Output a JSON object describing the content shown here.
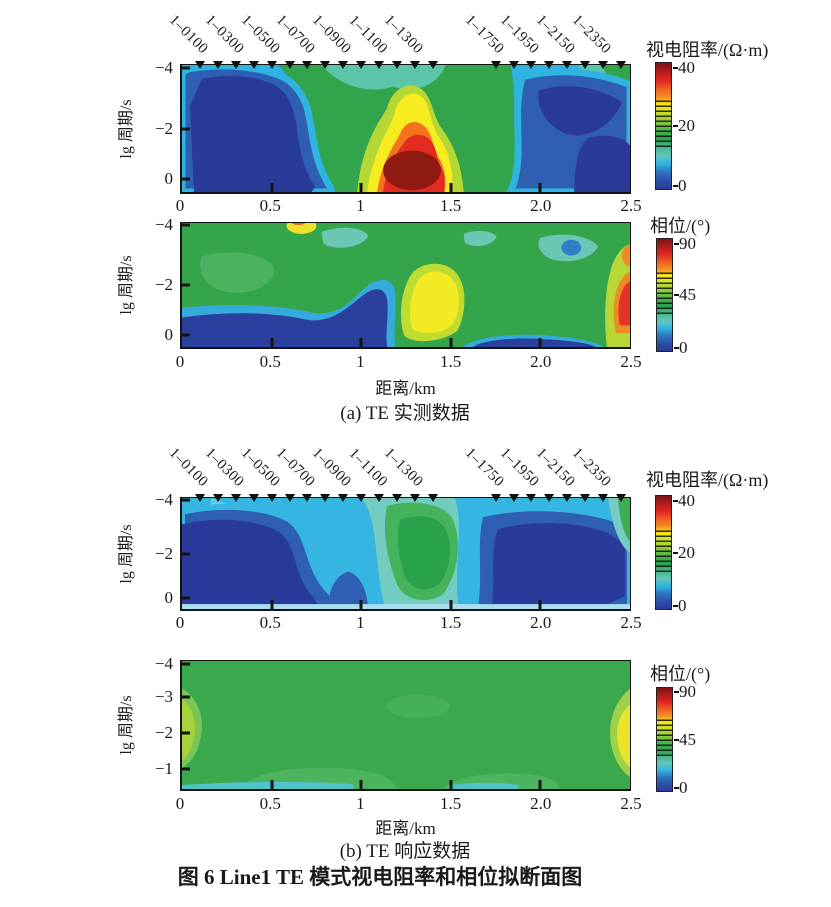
{
  "figure": {
    "panel_a_caption": "(a) TE 实测数据",
    "panel_b_caption": "(b) TE 响应数据",
    "title": "图 6  Line1 TE 模式视电阻率和相位拟断面图"
  },
  "axes": {
    "xlabel": "距离/km",
    "ylabel": "lg 周期/s",
    "x_max": 2.5,
    "x_ticks": [
      {
        "label": "0",
        "km": 0
      },
      {
        "label": "0.5",
        "km": 0.5
      },
      {
        "label": "1",
        "km": 1
      },
      {
        "label": "1.5",
        "km": 1.5
      },
      {
        "label": "2.0",
        "km": 2
      },
      {
        "label": "2.5",
        "km": 2.5
      }
    ],
    "y_tick_sets": {
      "three": [
        {
          "label": "−4",
          "f": 0.02
        },
        {
          "label": "−2",
          "f": 0.5
        },
        {
          "label": "0",
          "f": 0.9
        }
      ],
      "four": [
        {
          "label": "−4",
          "f": 0.02
        },
        {
          "label": "−3",
          "f": 0.285
        },
        {
          "label": "−2",
          "f": 0.56
        },
        {
          "label": "−1",
          "f": 0.845
        }
      ]
    }
  },
  "stations": {
    "marker_km": [
      0.1,
      0.2,
      0.3,
      0.4,
      0.5,
      0.6,
      0.7,
      0.8,
      0.9,
      1.0,
      1.1,
      1.2,
      1.3,
      1.4,
      1.75,
      1.85,
      1.95,
      2.05,
      2.15,
      2.25,
      2.35,
      2.45
    ],
    "labels": [
      {
        "label": "1–0100",
        "km": 0.1
      },
      {
        "label": "1–0300",
        "km": 0.3
      },
      {
        "label": "1–0500",
        "km": 0.5
      },
      {
        "label": "1–0700",
        "km": 0.7
      },
      {
        "label": "1–0900",
        "km": 0.9
      },
      {
        "label": "1–1100",
        "km": 1.1
      },
      {
        "label": "1–1300",
        "km": 1.3
      },
      {
        "label": "1–1750",
        "km": 1.75
      },
      {
        "label": "1–1950",
        "km": 1.95
      },
      {
        "label": "1–2150",
        "km": 2.15
      },
      {
        "label": "1–2350",
        "km": 2.35
      }
    ]
  },
  "colorbars": {
    "resistivity": {
      "label": "视电阻率/(Ω·m)",
      "ticks": [
        {
          "label": "40",
          "f": 0.05
        },
        {
          "label": "20",
          "f": 0.5
        },
        {
          "label": "0",
          "f": 0.965
        }
      ]
    },
    "phase": {
      "label": "相位/(°)",
      "ticks": [
        {
          "label": "90",
          "f": 0.05
        },
        {
          "label": "45",
          "f": 0.5
        },
        {
          "label": "0",
          "f": 0.965
        }
      ]
    }
  },
  "palette": {
    "colorbar_top_to_bottom": [
      "#7a1315",
      "#b01b1b",
      "#e02420",
      "#ef5a23",
      "#f58c20",
      "#f6ea1c",
      "#c3dc2a",
      "#8cc83b",
      "#45b34f",
      "#2aa34c",
      "#45b98a",
      "#63c6bd",
      "#30b2e0",
      "#2d74bb",
      "#2c4fa8",
      "#2b3a97"
    ]
  },
  "chart_data": [
    {
      "type": "heatmap",
      "id": "a_apparent_resistivity_measured",
      "group_caption": "(a) TE 实测数据",
      "xlabel": "距离/km",
      "ylabel": "lg 周期/s",
      "xlim": [
        0,
        2.5
      ],
      "ylim_top_to_bottom": [
        -4,
        0.5
      ],
      "x_tick_values": [
        0,
        0.5,
        1,
        1.5,
        2.0,
        2.5
      ],
      "y_tick_values": [
        -4,
        -2,
        0
      ],
      "grid": false,
      "colorbar": {
        "label": "视电阻率/(Ω·m)",
        "min": 0,
        "max": 40,
        "tick_values": [
          40,
          20,
          0
        ],
        "position": "right"
      },
      "features": [
        {
          "region": "central high-resistivity core (dark red)",
          "x_km": [
            1.0,
            1.45
          ],
          "lg_period": [
            -1.3,
            0.5
          ],
          "value_ohm_m": 40
        },
        {
          "region": "red-orange halo",
          "x_km": [
            0.9,
            1.55
          ],
          "lg_period": [
            -2.3,
            0.5
          ],
          "value_ohm_m": 30
        },
        {
          "region": "yellow halo rising shallow",
          "x_km": [
            0.95,
            1.4
          ],
          "lg_period": [
            -3.2,
            0.5
          ],
          "value_ohm_m": 25
        },
        {
          "region": "green medium zone around anomaly",
          "x_km": [
            0.55,
            1.9
          ],
          "lg_period": [
            -4,
            0.5
          ],
          "value_ohm_m": 18
        },
        {
          "region": "left conductive zone (dark blue)",
          "x_km": [
            0.05,
            0.75
          ],
          "lg_period": [
            -3.7,
            0.5
          ],
          "value_ohm_m": 4
        },
        {
          "region": "right conductive zone (dark blue)",
          "x_km": [
            1.85,
            2.45
          ],
          "lg_period": [
            -3.5,
            0.5
          ],
          "value_ohm_m": 4
        },
        {
          "region": "teal-green shallow strip top-right corner",
          "x_km": [
            2.2,
            2.5
          ],
          "lg_period": [
            -4,
            -3.2
          ],
          "value_ohm_m": 15
        }
      ]
    },
    {
      "type": "heatmap",
      "id": "a_phase_measured",
      "group_caption": "(a) TE 实测数据",
      "xlabel": "距离/km",
      "ylabel": "lg 周期/s",
      "xlim": [
        0,
        2.5
      ],
      "ylim_top_to_bottom": [
        -4,
        0.5
      ],
      "x_tick_values": [
        0,
        0.5,
        1,
        1.5,
        2.0,
        2.5
      ],
      "y_tick_values": [
        -4,
        -2,
        0
      ],
      "grid": false,
      "colorbar": {
        "label": "相位/(°)",
        "min": 0,
        "max": 90,
        "tick_values": [
          90,
          45,
          0
        ],
        "position": "right"
      },
      "features": [
        {
          "region": "background",
          "phase_deg": 45
        },
        {
          "region": "low-phase band along bottom-left (dark blue)",
          "x_km": [
            0,
            1.2
          ],
          "lg_period": [
            -0.6,
            0.5
          ],
          "phase_deg": 10
        },
        {
          "region": "high-phase blob (yellow)",
          "x_km": [
            1.25,
            1.75
          ],
          "lg_period": [
            -2.6,
            -0.6
          ],
          "phase_deg": 60
        },
        {
          "region": "high-phase spot right edge (red)",
          "x_km": [
            2.42,
            2.5
          ],
          "lg_period": [
            -1.8,
            -0.4
          ],
          "phase_deg": 78
        },
        {
          "region": "low-phase strip bottom right",
          "x_km": [
            1.6,
            2.35
          ],
          "lg_period": [
            -0.3,
            0.5
          ],
          "phase_deg": 15
        },
        {
          "region": "small cool spot",
          "x_km": [
            2.05,
            2.2
          ],
          "lg_period": [
            -3.4,
            -2.9
          ],
          "phase_deg": 30
        },
        {
          "region": "small warm spot at top",
          "x_km": [
            0.6,
            0.78
          ],
          "lg_period": [
            -4,
            -3.8
          ],
          "phase_deg": 65
        }
      ]
    },
    {
      "type": "heatmap",
      "id": "b_apparent_resistivity_response",
      "group_caption": "(b) TE 响应数据",
      "xlabel": "距离/km",
      "ylabel": "lg 周期/s",
      "xlim": [
        0,
        2.5
      ],
      "ylim_top_to_bottom": [
        -4,
        0.5
      ],
      "x_tick_values": [
        0,
        0.5,
        1,
        1.5,
        2.0,
        2.5
      ],
      "y_tick_values": [
        -4,
        -2,
        0
      ],
      "grid": false,
      "colorbar": {
        "label": "视电阻率/(Ω·m)",
        "min": 0,
        "max": 40,
        "tick_values": [
          40,
          20,
          0
        ],
        "position": "right"
      },
      "features": [
        {
          "region": "background (cyan)",
          "value_ohm_m": 9
        },
        {
          "region": "central green moderate zone",
          "x_km": [
            1.1,
            1.65
          ],
          "lg_period": [
            -3.8,
            -0.3
          ],
          "value_ohm_m": 18
        },
        {
          "region": "left conductive zone (dark blue)",
          "x_km": [
            0,
            0.85
          ],
          "lg_period": [
            -3.6,
            0.5
          ],
          "value_ohm_m": 4
        },
        {
          "region": "right conductive zone (dark blue)",
          "x_km": [
            1.7,
            2.45
          ],
          "lg_period": [
            -3.5,
            0.5
          ],
          "value_ohm_m": 4
        },
        {
          "region": "green corner top-right edge",
          "x_km": [
            2.42,
            2.5
          ],
          "lg_period": [
            -4,
            -2.2
          ],
          "value_ohm_m": 16
        }
      ]
    },
    {
      "type": "heatmap",
      "id": "b_phase_response",
      "group_caption": "(b) TE 响应数据",
      "xlabel": "距离/km",
      "ylabel": "lg 周期/s",
      "xlim": [
        0,
        2.5
      ],
      "ylim_top_to_bottom": [
        -4,
        -0.5
      ],
      "x_tick_values": [
        0,
        0.5,
        1,
        1.5,
        2.0,
        2.5
      ],
      "y_tick_values": [
        -4,
        -3,
        -2,
        -1
      ],
      "grid": false,
      "colorbar": {
        "label": "相位/(°)",
        "min": 0,
        "max": 90,
        "tick_values": [
          90,
          45,
          0
        ],
        "position": "right"
      },
      "features": [
        {
          "region": "background (smooth green)",
          "phase_deg": 45
        },
        {
          "region": "yellow-green patch left edge",
          "x_km": [
            0,
            0.12
          ],
          "lg_period": [
            -2.6,
            -1.2
          ],
          "phase_deg": 55
        },
        {
          "region": "yellow patch right edge",
          "x_km": [
            2.42,
            2.5
          ],
          "lg_period": [
            -2.2,
            -1.0
          ],
          "phase_deg": 62
        },
        {
          "region": "thin cyan strip along bottom",
          "x_km": [
            0,
            2.5
          ],
          "lg_period": [
            -0.6,
            -0.5
          ],
          "phase_deg": 38
        }
      ]
    }
  ]
}
